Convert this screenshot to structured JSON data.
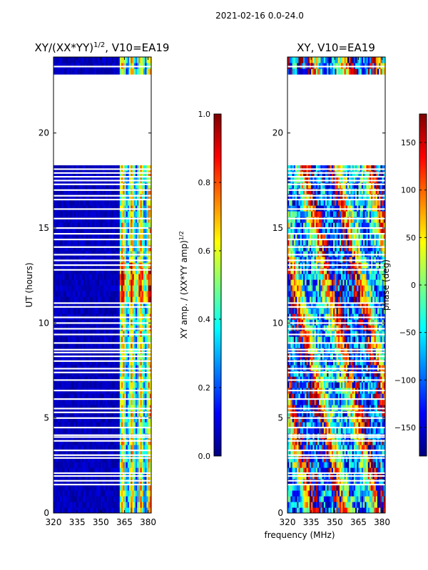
{
  "suptitle": "2021-02-16 0.0-24.0",
  "colors": {
    "jet": [
      "#00007f",
      "#0000ff",
      "#007fff",
      "#00ffff",
      "#7fff7f",
      "#ffff00",
      "#ff7f00",
      "#ff0000",
      "#7f0000"
    ],
    "background": "#ffffff",
    "gap": "#ffffff"
  },
  "chart_data": [
    {
      "type": "heatmap",
      "title_main": "XY/(XX*YY)",
      "title_sup": "1/2",
      "title_tail": ", V10=EA19",
      "ylabel": "UT (hours)",
      "xlabel": "",
      "xlim": [
        320,
        382
      ],
      "ylim": [
        0,
        24
      ],
      "xticks": [
        320,
        335,
        350,
        365,
        380
      ],
      "yticks": [
        0,
        5,
        10,
        15,
        20
      ],
      "colorbar": {
        "label_main": "XY amp. / (XX*YY amp)",
        "label_sup": "1/2",
        "range": [
          0.0,
          1.0
        ],
        "ticks": [
          "0.0",
          "0.2",
          "0.4",
          "0.6",
          "0.8",
          "1.0"
        ],
        "tick_values": [
          0.0,
          0.2,
          0.4,
          0.6,
          0.8,
          1.0
        ]
      },
      "data_gap_hours": [
        [
          18.3,
          22.9
        ]
      ],
      "flagged_rows_hours": [
        1.5,
        1.7,
        1.95,
        2.1,
        2.9,
        3.05,
        3.3,
        3.8,
        4.0,
        4.1,
        4.5,
        5.0,
        5.3,
        5.5,
        6.0,
        6.45,
        7.0,
        7.4,
        7.6,
        8.0,
        8.25,
        8.45,
        8.6,
        8.95,
        9.4,
        9.7,
        10.0,
        10.3,
        10.85,
        11.05,
        12.8,
        13.05,
        13.3,
        13.6,
        14.0,
        14.4,
        14.7,
        15.0,
        15.5,
        16.0,
        16.5,
        16.7,
        17.0,
        17.3,
        17.5,
        17.7,
        17.9,
        18.1,
        23.0,
        23.5
      ],
      "band_description_mhz": "low amplitude (~0.05) across 320-362 MHz; structured stripes of 0.3-0.9 across 362-382 MHz"
    },
    {
      "type": "heatmap",
      "title_main": "XY, V10=EA19",
      "title_sup": "",
      "title_tail": "",
      "ylabel": "",
      "xlabel": "frequency (MHz)",
      "xlim": [
        320,
        382
      ],
      "ylim": [
        0,
        24
      ],
      "xticks": [
        320,
        335,
        350,
        365,
        380
      ],
      "yticks": [
        0,
        5,
        10,
        15,
        20
      ],
      "colorbar": {
        "label_main": "phase (deg)",
        "label_sup": "",
        "range": [
          -180,
          180
        ],
        "ticks": [
          "150",
          "100",
          "50",
          "0",
          "−50",
          "−100",
          "−150"
        ],
        "tick_values": [
          150,
          100,
          50,
          0,
          -50,
          -100,
          -150
        ]
      },
      "data_gap_hours": [
        [
          18.3,
          22.9
        ]
      ],
      "flagged_rows_hours": [
        1.5,
        1.7,
        1.95,
        2.1,
        2.9,
        3.05,
        3.3,
        3.8,
        4.0,
        4.1,
        4.5,
        5.0,
        5.3,
        5.5,
        6.0,
        6.45,
        7.0,
        7.4,
        7.6,
        8.0,
        8.25,
        8.45,
        8.6,
        8.95,
        9.4,
        9.7,
        10.0,
        10.3,
        10.85,
        11.05,
        12.8,
        13.05,
        13.3,
        13.6,
        14.0,
        14.4,
        14.7,
        15.0,
        15.5,
        16.0,
        16.5,
        16.7,
        17.0,
        17.3,
        17.5,
        17.7,
        17.9,
        18.1,
        23.0,
        23.5
      ],
      "band_description_mhz": "phase wraps across full -180 to 180 range; noisy structure throughout 320-382 MHz"
    }
  ]
}
